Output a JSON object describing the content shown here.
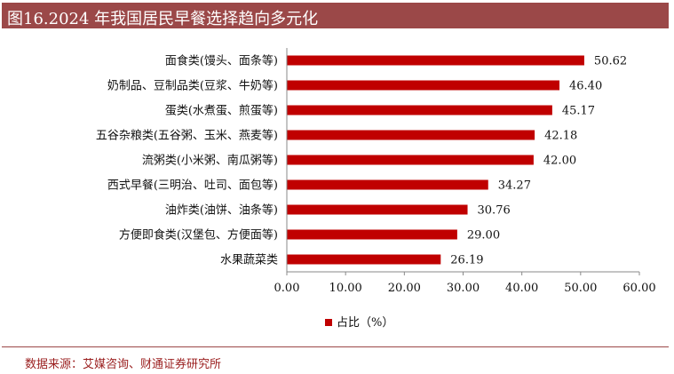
{
  "header": {
    "title": "图16.2024 年我国居民早餐选择趋向多元化"
  },
  "footer": {
    "source": "数据来源：艾媒咨询、财通证券研究所"
  },
  "colors": {
    "bar": "#c00000",
    "title_bg": "#9b4848",
    "source_text": "#9b2020"
  },
  "chart_data": {
    "type": "bar",
    "orientation": "horizontal",
    "categories": [
      "面食类(馒头、面条等)",
      "奶制品、豆制品类(豆浆、牛奶等)",
      "蛋类(水煮蛋、煎蛋等)",
      "五谷杂粮类(五谷粥、玉米、燕麦等)",
      "流粥类(小米粥、南瓜粥等)",
      "西式早餐(三明治、吐司、面包等)",
      "油炸类(油饼、油条等)",
      "方便即食类(汉堡包、方便面等)",
      "水果蔬菜类"
    ],
    "series": [
      {
        "name": "占比（%）",
        "values": [
          50.62,
          46.4,
          45.17,
          42.18,
          42.0,
          34.27,
          30.76,
          29.0,
          26.19
        ]
      }
    ],
    "data_labels": [
      "50.62",
      "46.40",
      "45.17",
      "42.18",
      "42.00",
      "34.27",
      "30.76",
      "29.00",
      "26.19"
    ],
    "xlim": [
      0,
      60
    ],
    "x_ticks": [
      "0.00",
      "10.00",
      "20.00",
      "30.00",
      "40.00",
      "50.00",
      "60.00"
    ],
    "grid": false,
    "legend": "bottom-center"
  }
}
